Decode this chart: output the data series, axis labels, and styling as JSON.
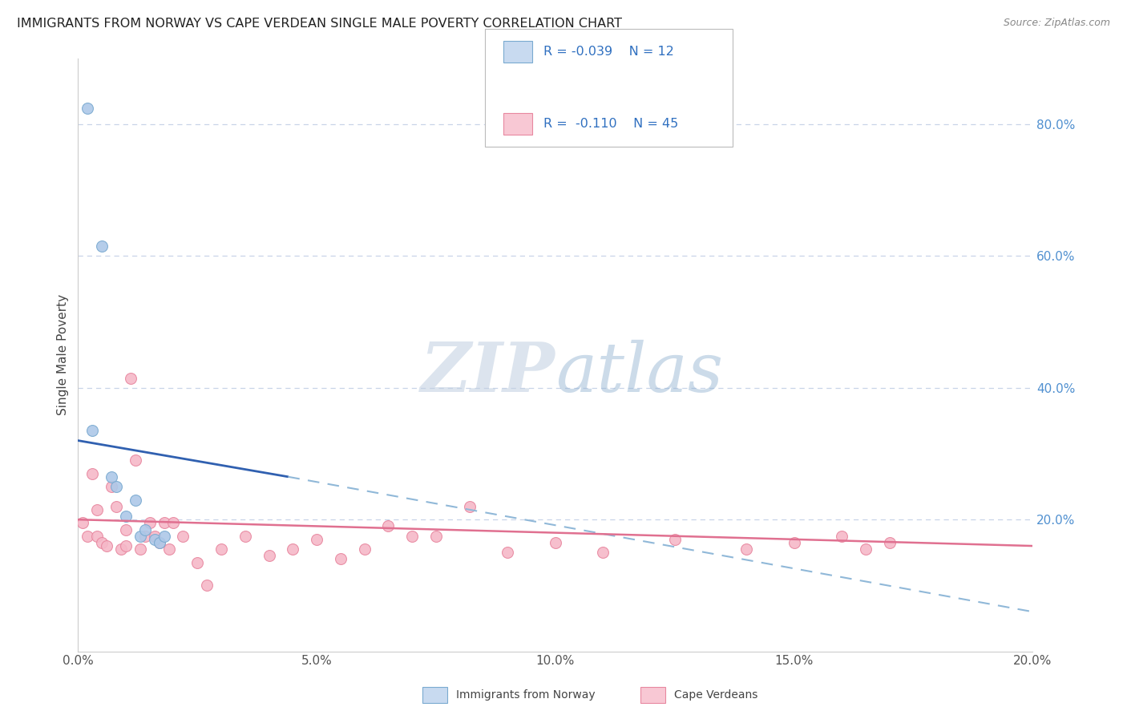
{
  "title": "IMMIGRANTS FROM NORWAY VS CAPE VERDEAN SINGLE MALE POVERTY CORRELATION CHART",
  "source": "Source: ZipAtlas.com",
  "ylabel": "Single Male Poverty",
  "xlim": [
    0.0,
    0.2
  ],
  "ylim": [
    0.0,
    0.9
  ],
  "x_tick_labels": [
    "0.0%",
    "5.0%",
    "10.0%",
    "15.0%",
    "20.0%"
  ],
  "x_tick_values": [
    0.0,
    0.05,
    0.1,
    0.15,
    0.2
  ],
  "y_tick_labels": [
    "20.0%",
    "40.0%",
    "60.0%",
    "80.0%"
  ],
  "y_tick_values": [
    0.2,
    0.4,
    0.6,
    0.8
  ],
  "norway_color": "#adc8e8",
  "norway_edge_color": "#7aaad0",
  "cv_color": "#f5b8c8",
  "cv_edge_color": "#e888a0",
  "trendline_norway_solid_color": "#3060b0",
  "trendline_cv_color": "#e07090",
  "trendline_dashed_color": "#90b8d8",
  "legend_box_norway_fill": "#c8daf0",
  "legend_box_cv_fill": "#f8c8d4",
  "legend_text_color": "#3070c0",
  "R_norway": -0.039,
  "N_norway": 12,
  "R_cv": -0.11,
  "N_cv": 45,
  "watermark_zip": "ZIP",
  "watermark_atlas": "atlas",
  "background_color": "#ffffff",
  "grid_color": "#c8d4e8",
  "norway_points_x": [
    0.002,
    0.003,
    0.005,
    0.007,
    0.008,
    0.01,
    0.012,
    0.013,
    0.014,
    0.016,
    0.017,
    0.018
  ],
  "norway_points_y": [
    0.825,
    0.335,
    0.615,
    0.265,
    0.25,
    0.205,
    0.23,
    0.175,
    0.185,
    0.17,
    0.165,
    0.175
  ],
  "cv_points_x": [
    0.001,
    0.002,
    0.003,
    0.004,
    0.004,
    0.005,
    0.006,
    0.007,
    0.008,
    0.009,
    0.01,
    0.01,
    0.011,
    0.012,
    0.013,
    0.014,
    0.015,
    0.016,
    0.017,
    0.018,
    0.019,
    0.02,
    0.022,
    0.025,
    0.027,
    0.03,
    0.035,
    0.04,
    0.045,
    0.05,
    0.055,
    0.06,
    0.065,
    0.07,
    0.075,
    0.082,
    0.09,
    0.1,
    0.11,
    0.125,
    0.14,
    0.15,
    0.16,
    0.165,
    0.17
  ],
  "cv_points_y": [
    0.195,
    0.175,
    0.27,
    0.175,
    0.215,
    0.165,
    0.16,
    0.25,
    0.22,
    0.155,
    0.16,
    0.185,
    0.415,
    0.29,
    0.155,
    0.175,
    0.195,
    0.175,
    0.165,
    0.195,
    0.155,
    0.195,
    0.175,
    0.135,
    0.1,
    0.155,
    0.175,
    0.145,
    0.155,
    0.17,
    0.14,
    0.155,
    0.19,
    0.175,
    0.175,
    0.22,
    0.15,
    0.165,
    0.15,
    0.17,
    0.155,
    0.165,
    0.175,
    0.155,
    0.165
  ],
  "norway_trend_x0": 0.0,
  "norway_trend_y0": 0.32,
  "norway_trend_x1": 0.044,
  "norway_trend_y1": 0.265,
  "dashed_trend_x0": 0.044,
  "dashed_trend_y0": 0.265,
  "dashed_trend_x1": 0.2,
  "dashed_trend_y1": 0.06,
  "cv_trend_x0": 0.0,
  "cv_trend_y0": 0.2,
  "cv_trend_x1": 0.2,
  "cv_trend_y1": 0.16,
  "marker_size": 100
}
